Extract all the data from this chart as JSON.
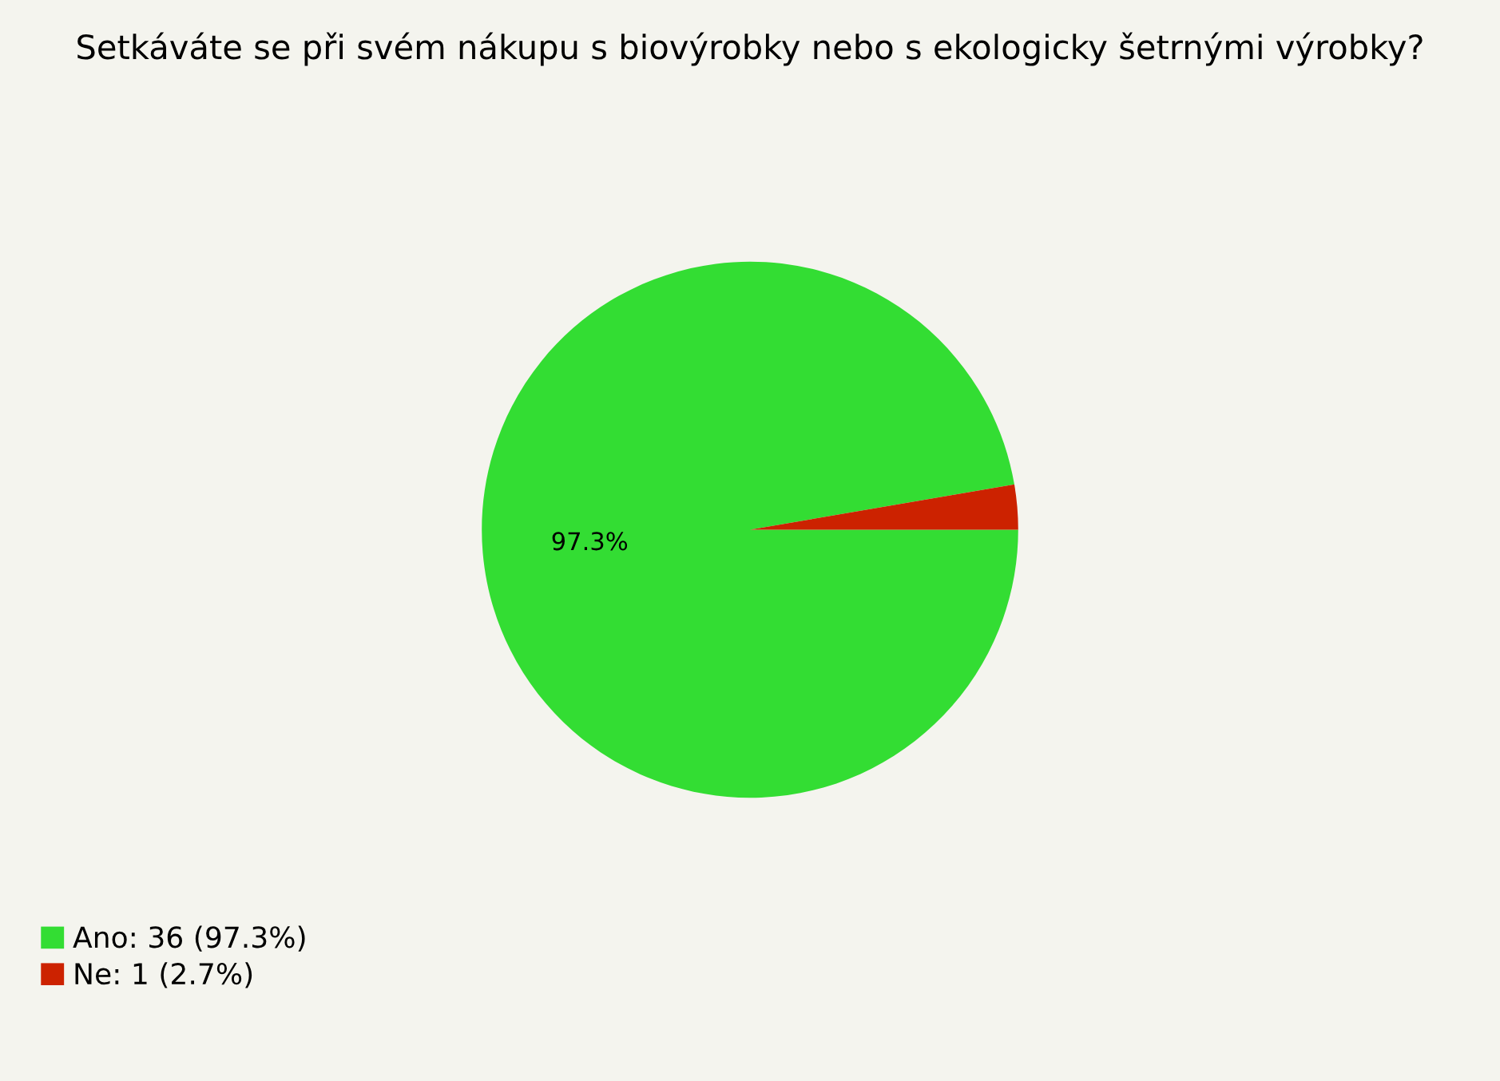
{
  "chart_data": {
    "type": "pie",
    "title": "Setkáváte se při svém nákupu s biovýrobky nebo s ekologicky šetrnými výrobky?",
    "categories": [
      "Ano: 36 (97.3%)",
      "Ne: 1 (2.7%)"
    ],
    "values": [
      97.3,
      2.7
    ],
    "colors": [
      "#33dd33",
      "#cc2200"
    ],
    "value_labels": [
      "97.3%",
      null
    ],
    "legend": "bottom left"
  }
}
